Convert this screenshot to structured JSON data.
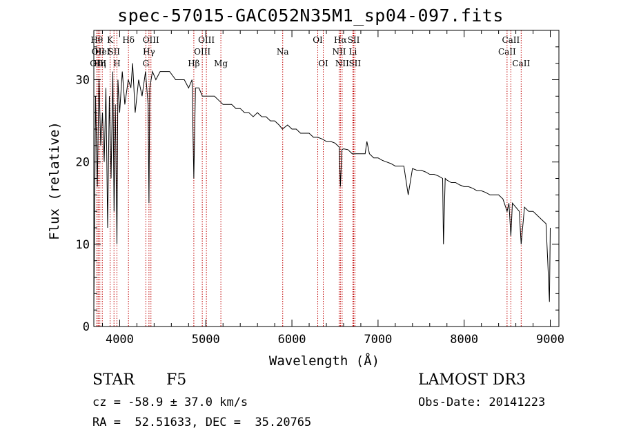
{
  "chart_data": {
    "type": "line",
    "title": "spec-57015-GAC052N35M1_sp04-097.fits",
    "xlabel": "Wavelength (Å)",
    "ylabel": "Flux (relative)",
    "xlim": [
      3700,
      9100
    ],
    "ylim": [
      0,
      36
    ],
    "x_ticks": [
      4000,
      5000,
      6000,
      7000,
      8000,
      9000
    ],
    "y_ticks": [
      0,
      10,
      20,
      30
    ],
    "series": [
      {
        "name": "flux",
        "x": [
          3700,
          3720,
          3740,
          3760,
          3780,
          3800,
          3820,
          3840,
          3860,
          3880,
          3900,
          3920,
          3935,
          3950,
          3968,
          3980,
          4000,
          4030,
          4060,
          4100,
          4130,
          4150,
          4180,
          4220,
          4260,
          4300,
          4330,
          4340,
          4350,
          4380,
          4420,
          4470,
          4520,
          4580,
          4650,
          4700,
          4750,
          4800,
          4840,
          4861,
          4880,
          4920,
          4960,
          5000,
          5050,
          5100,
          5150,
          5200,
          5250,
          5300,
          5350,
          5400,
          5450,
          5500,
          5550,
          5600,
          5650,
          5700,
          5750,
          5800,
          5850,
          5890,
          5950,
          6000,
          6050,
          6100,
          6150,
          6200,
          6250,
          6300,
          6350,
          6400,
          6450,
          6500,
          6530,
          6550,
          6563,
          6580,
          6600,
          6650,
          6700,
          6750,
          6800,
          6850,
          6870,
          6900,
          6950,
          7000,
          7050,
          7100,
          7150,
          7200,
          7250,
          7300,
          7350,
          7400,
          7450,
          7500,
          7550,
          7600,
          7650,
          7700,
          7750,
          7760,
          7780,
          7800,
          7850,
          7900,
          7950,
          8000,
          8050,
          8100,
          8150,
          8200,
          8250,
          8300,
          8350,
          8400,
          8450,
          8498,
          8520,
          8542,
          8560,
          8600,
          8640,
          8662,
          8700,
          8750,
          8800,
          8850,
          8900,
          8950,
          8970,
          8990,
          9000
        ],
        "y": [
          2,
          28,
          17,
          30,
          22,
          26,
          20,
          29,
          12,
          28,
          18,
          31,
          14,
          27,
          10,
          30,
          26,
          31,
          27,
          30,
          29,
          32,
          26,
          30,
          28,
          31,
          27,
          15,
          29,
          31,
          30,
          31,
          31,
          31,
          30,
          30,
          30,
          29,
          30,
          18,
          29,
          29,
          28,
          28,
          28,
          28,
          27.5,
          27,
          27,
          27,
          26.5,
          26.5,
          26,
          26,
          25.5,
          26,
          25.5,
          25.5,
          25,
          25,
          24.5,
          24,
          24.5,
          24,
          24,
          23.5,
          23.5,
          23.5,
          23,
          23,
          22.8,
          22.5,
          22.5,
          22.3,
          22,
          21.8,
          17,
          21.5,
          21.6,
          21.5,
          21,
          21,
          21,
          21,
          22.5,
          21,
          20.5,
          20.5,
          20.2,
          20,
          19.8,
          19.5,
          19.5,
          19.5,
          16,
          19.2,
          19,
          19,
          18.8,
          18.5,
          18.5,
          18.3,
          18,
          10,
          18,
          17.8,
          17.5,
          17.5,
          17.2,
          17,
          17,
          16.8,
          16.5,
          16.5,
          16.3,
          16,
          16,
          16,
          15.5,
          14,
          15,
          11,
          15,
          14.5,
          14,
          10,
          14.5,
          14,
          14,
          13.5,
          13,
          12.5,
          8,
          3,
          12
        ]
      }
    ],
    "lines": [
      {
        "w": 3734,
        "label": "Hθ",
        "row": 1
      },
      {
        "w": 3750,
        "label": "OII",
        "row": 2
      },
      {
        "w": 3750,
        "label": "OIII",
        "row": 3
      },
      {
        "w": 3770,
        "label": "Hη",
        "row": 3
      },
      {
        "w": 3798,
        "label": "HeI",
        "row": 2
      },
      {
        "w": 3889,
        "label": "K",
        "row": 1
      },
      {
        "w": 3934,
        "label": "SII",
        "row": 2
      },
      {
        "w": 3968,
        "label": "H",
        "row": 3
      },
      {
        "w": 4102,
        "label": "Hδ",
        "row": 1
      },
      {
        "w": 4304,
        "label": "G",
        "row": 3
      },
      {
        "w": 4340,
        "label": "Hγ",
        "row": 2
      },
      {
        "w": 4363,
        "label": "OIII",
        "row": 1
      },
      {
        "w": 4861,
        "label": "Hβ",
        "row": 3
      },
      {
        "w": 4959,
        "label": "OIII",
        "row": 2
      },
      {
        "w": 5007,
        "label": "OIII",
        "row": 1
      },
      {
        "w": 5175,
        "label": "Mg",
        "row": 3
      },
      {
        "w": 5893,
        "label": "Na",
        "row": 2
      },
      {
        "w": 6300,
        "label": "OI",
        "row": 1
      },
      {
        "w": 6364,
        "label": "OI",
        "row": 3
      },
      {
        "w": 6548,
        "label": "NII",
        "row": 2
      },
      {
        "w": 6563,
        "label": "Hα",
        "row": 1
      },
      {
        "w": 6583,
        "label": "NII",
        "row": 3
      },
      {
        "w": 6708,
        "label": "Li",
        "row": 2
      },
      {
        "w": 6717,
        "label": "SII",
        "row": 1
      },
      {
        "w": 6731,
        "label": "SII",
        "row": 3
      },
      {
        "w": 8498,
        "label": "CaII",
        "row": 2
      },
      {
        "w": 8542,
        "label": "CaII",
        "row": 1
      },
      {
        "w": 8662,
        "label": "CaII",
        "row": 3
      }
    ]
  },
  "info": {
    "object_class": "STAR",
    "subclass": "F5",
    "survey": "LAMOST DR3",
    "redshift_line": "cz = -58.9 ± 37.0 km/s",
    "obs_date": "Obs-Date: 20141223",
    "coords": "RA =  52.51633, DEC =  35.20765"
  },
  "colors": {
    "spectrum": "#000000",
    "line_marker": "#c00000",
    "axes": "#000000"
  }
}
